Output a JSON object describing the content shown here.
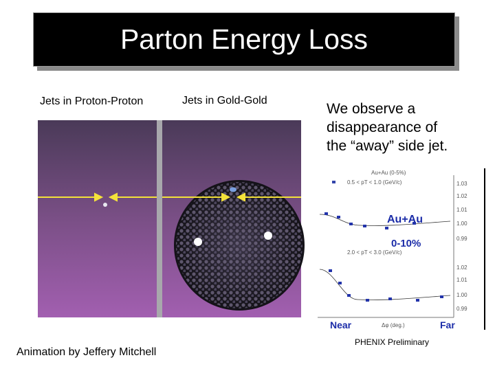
{
  "slide": {
    "title": "Parton Energy Loss",
    "left_label": "Jets in Proton-Proton",
    "middle_label": "Jets in Gold-Gold",
    "text": [
      "We observe a",
      "disappearance of",
      "the “away” side jet."
    ],
    "credit": "Animation by Jeffery Mitchell",
    "inset": {
      "header": "Au+Au (0-5%)",
      "legend_top": "0.5 < pT < 1.0 (GeV/c)",
      "legend_bottom": "2.0 < pT < 3.0 (GeV/c)",
      "top_ticks": [
        "1.03",
        "1.02",
        "1.01",
        "1.00",
        "0.99"
      ],
      "bottom_ticks": [
        "1.02",
        "1.01",
        "1.00",
        "0.99"
      ],
      "x_axis_label": "Δφ (deg.)",
      "overlay_system": "Au+Au",
      "overlay_centrality": "0-10%",
      "near": "Near",
      "far": "Far",
      "caption": "PHENIX Preliminary"
    }
  }
}
